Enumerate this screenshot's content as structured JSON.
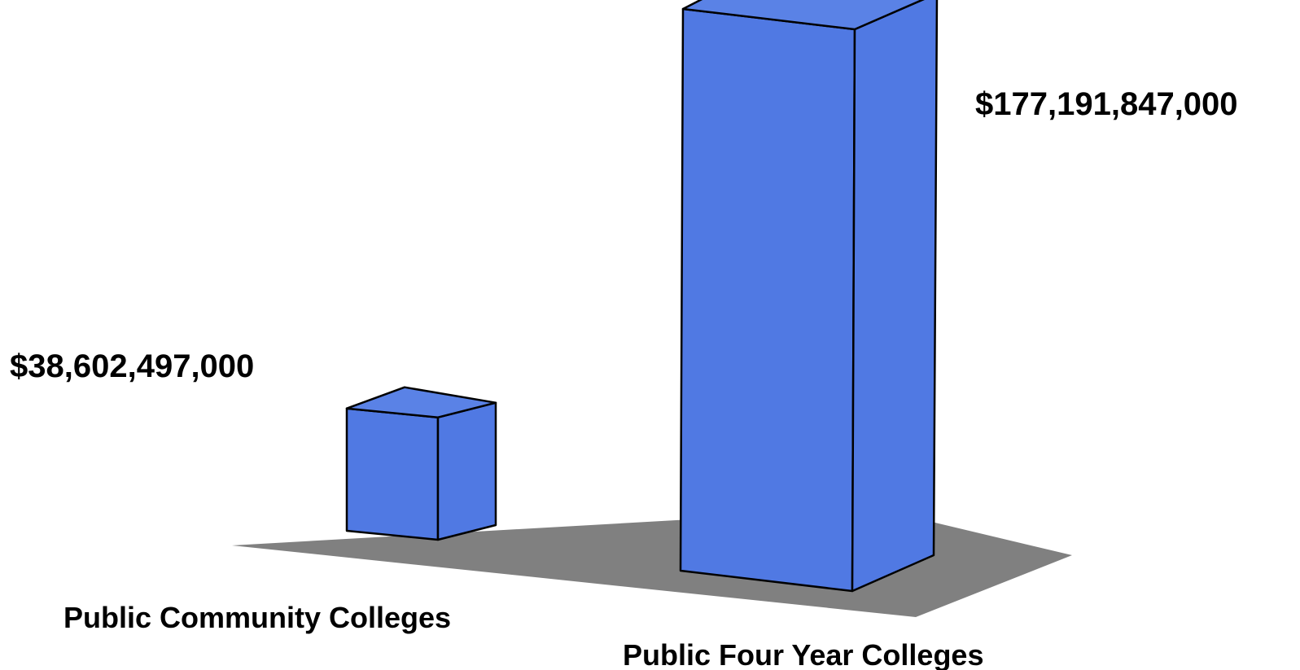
{
  "chart_data": {
    "type": "bar",
    "style": "3d-perspective",
    "categories": [
      "Public Community Colleges",
      "Public Four Year Colleges"
    ],
    "values": [
      38602497000,
      177191847000
    ],
    "data_labels": [
      "$38,602,497,000",
      "$177,191,847,000"
    ],
    "title": "",
    "xlabel": "",
    "ylabel": "",
    "grid": false,
    "legend": "none",
    "colors": {
      "bar_front": "#5079e3",
      "bar_side": "#5079e3",
      "bar_top": "#5a82e6",
      "outline": "#000000",
      "floor": "#808080"
    }
  }
}
